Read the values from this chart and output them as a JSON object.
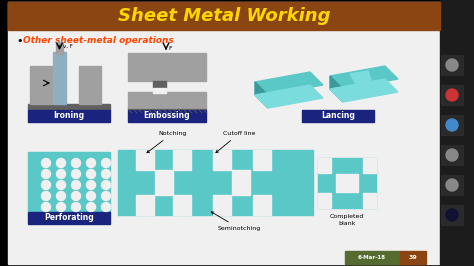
{
  "title": "Sheet Metal Working",
  "title_color": "#FFD700",
  "title_bg": "#8B4513",
  "subtitle": "Other sheet-metal operations",
  "subtitle_color": "#FF4500",
  "outer_bg": "#000000",
  "slide_bg": "#F0F0F0",
  "label_bg": "#1A237E",
  "label_text_color": "#FFFFFF",
  "teal_color": "#5BC8C8",
  "teal_dark": "#3A9999",
  "teal_light": "#7ADCDC",
  "gray_color": "#A0A0A0",
  "dark_gray": "#606060",
  "strip_color": "#8FAFC0",
  "label_ironing": "Ironing",
  "label_embossing": "Embossing",
  "label_lancing": "Lancing",
  "label_perforating": "Perforating",
  "label_notching": "Notching",
  "label_cutoff": "Cutoff line",
  "label_seminotching": "Seminotching",
  "label_completed": "Completed\nblank",
  "date_text": "6-Mar-18",
  "page_num": "39",
  "date_bg": "#556B2F",
  "page_bg": "#8B4513",
  "sidebar_color": "#1C1C1C",
  "sidebar_icon_bg": "#2A2A2A",
  "icon_colors": [
    "#888888",
    "#CC3333",
    "#4488CC",
    "#888888",
    "#888888",
    "#111133"
  ]
}
